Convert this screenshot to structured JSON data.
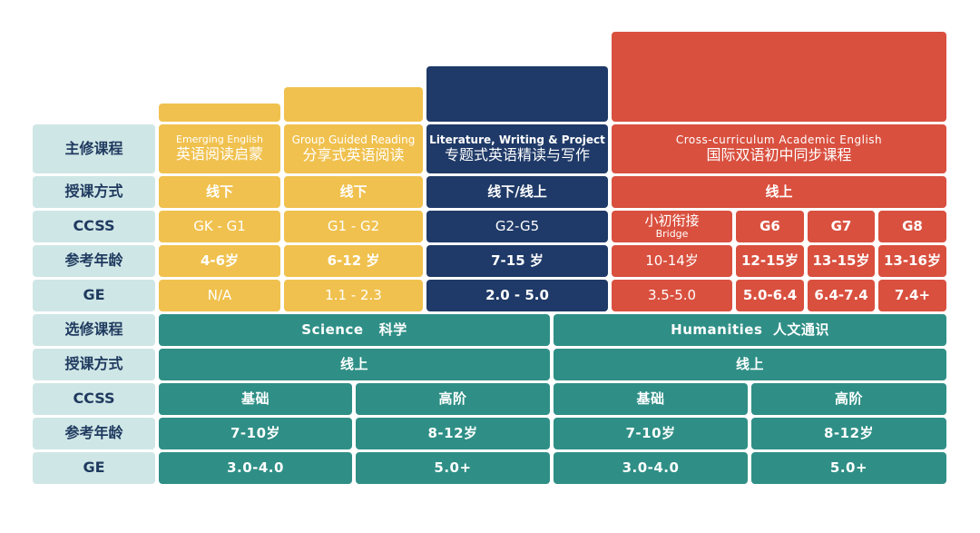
{
  "row_headers": {
    "major": "主修课程",
    "mode": "授课方式",
    "ccss": "CCSS",
    "age": "参考年龄",
    "ge": "GE",
    "elective": "选修课程",
    "mode2": "授课方式",
    "ccss2": "CCSS",
    "age2": "参考年龄",
    "ge2": "GE"
  },
  "emerging": {
    "en": "Emerging English",
    "cn": "英语阅读启蒙",
    "mode": "线下",
    "ccss": "GK - G1",
    "age": "4-6岁",
    "ge": "N/A"
  },
  "group_guided": {
    "en": "Group Guided Reading",
    "cn": "分享式英语阅读",
    "mode": "线下",
    "ccss": "G1 - G2",
    "age": "6-12 岁",
    "ge": "1.1 - 2.3"
  },
  "literature": {
    "en": "Literature, Writing & Project",
    "cn": "专题式英语精读与写作",
    "mode": "线下/线上",
    "ccss": "G2-G5",
    "age": "7-15 岁",
    "ge": "2.0 - 5.0"
  },
  "cross": {
    "en": "Cross-curriculum Academic English",
    "cn": "国际双语初中同步课程",
    "mode": "线上",
    "ccss_bridge_cn": "小初衔接",
    "ccss_bridge_en": "Bridge",
    "ccss_g6": "G6",
    "ccss_g7": "G7",
    "ccss_g8": "G8",
    "age_bridge": "10-14岁",
    "age_g6": "12-15岁",
    "age_g7": "13-15岁",
    "age_g8": "13-16岁",
    "ge_bridge": "3.5-5.0",
    "ge_g6": "5.0-6.4",
    "ge_g7": "6.4-7.4",
    "ge_g8": "7.4+"
  },
  "science": {
    "title": "Science   科学",
    "mode": "线上",
    "basic": "基础",
    "advanced": "高阶",
    "age_basic": "7-10岁",
    "age_adv": "8-12岁",
    "ge_basic": "3.0-4.0",
    "ge_adv": "5.0+"
  },
  "humanities": {
    "title": "Humanities  人文通识",
    "mode": "线上",
    "basic": "基础",
    "advanced": "高阶",
    "age_basic": "7-10岁",
    "age_adv": "8-12岁",
    "ge_basic": "3.0-4.0",
    "ge_adv": "5.0+"
  },
  "colors": {
    "yellow": "#f0c14e",
    "navy": "#1f3a68",
    "red": "#d9503f",
    "teal": "#2f8f86",
    "header_bg": "#cfe6e6",
    "header_text": "#1f3a5f"
  }
}
